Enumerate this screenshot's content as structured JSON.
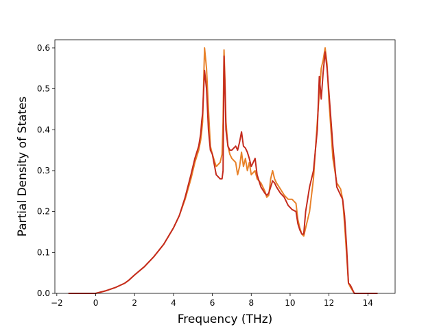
{
  "chart_data": {
    "type": "line",
    "title": "",
    "xlabel": "Frequency (THz)",
    "ylabel": "Partial Density of States",
    "xlim": [
      -2.1,
      15.4
    ],
    "ylim": [
      0.0,
      0.62
    ],
    "x_ticks": [
      -2,
      0,
      2,
      4,
      6,
      8,
      10,
      12,
      14
    ],
    "x_tick_labels": [
      "−2",
      "0",
      "2",
      "4",
      "6",
      "8",
      "10",
      "12",
      "14"
    ],
    "y_ticks": [
      0.0,
      0.1,
      0.2,
      0.3,
      0.4,
      0.5,
      0.6
    ],
    "y_tick_labels": [
      "0.0",
      "0.1",
      "0.2",
      "0.3",
      "0.4",
      "0.5",
      "0.6"
    ],
    "grid": false,
    "legend": "none",
    "series": [
      {
        "color": "#e8822a",
        "x": [
          -1.4,
          -1.0,
          -0.5,
          0.0,
          0.5,
          1.0,
          1.5,
          1.7,
          2.0,
          2.5,
          3.0,
          3.5,
          4.0,
          4.3,
          4.6,
          4.9,
          5.1,
          5.3,
          5.4,
          5.45,
          5.5,
          5.6,
          5.7,
          5.8,
          5.9,
          6.0,
          6.2,
          6.4,
          6.5,
          6.55,
          6.6,
          6.65,
          6.7,
          6.8,
          6.9,
          7.0,
          7.2,
          7.3,
          7.4,
          7.5,
          7.6,
          7.7,
          7.8,
          7.9,
          8.0,
          8.2,
          8.3,
          8.5,
          8.7,
          8.8,
          8.9,
          9.0,
          9.1,
          9.2,
          9.3,
          9.5,
          9.7,
          9.9,
          10.1,
          10.3,
          10.4,
          10.5,
          10.6,
          10.7,
          10.8,
          11.0,
          11.2,
          11.4,
          11.5,
          11.6,
          11.7,
          11.8,
          11.9,
          12.0,
          12.2,
          12.4,
          12.6,
          12.7,
          12.8,
          12.9,
          13.0,
          13.1,
          13.3,
          13.5,
          14.0,
          14.5
        ],
        "y": [
          0.0,
          0.0,
          0.0,
          0.0,
          0.006,
          0.014,
          0.025,
          0.032,
          0.045,
          0.065,
          0.09,
          0.12,
          0.16,
          0.19,
          0.23,
          0.28,
          0.32,
          0.35,
          0.375,
          0.395,
          0.42,
          0.6,
          0.55,
          0.45,
          0.36,
          0.34,
          0.31,
          0.32,
          0.34,
          0.42,
          0.595,
          0.52,
          0.42,
          0.36,
          0.34,
          0.33,
          0.32,
          0.29,
          0.31,
          0.345,
          0.31,
          0.33,
          0.3,
          0.32,
          0.29,
          0.3,
          0.28,
          0.27,
          0.25,
          0.235,
          0.24,
          0.28,
          0.3,
          0.28,
          0.27,
          0.255,
          0.24,
          0.23,
          0.23,
          0.22,
          0.18,
          0.16,
          0.145,
          0.14,
          0.16,
          0.2,
          0.28,
          0.42,
          0.49,
          0.55,
          0.57,
          0.6,
          0.56,
          0.47,
          0.33,
          0.27,
          0.255,
          0.23,
          0.17,
          0.1,
          0.025,
          0.015,
          0.0,
          0.0,
          0.0,
          0.0
        ]
      },
      {
        "color": "#c42b1e",
        "x": [
          -1.4,
          -1.0,
          -0.5,
          0.0,
          0.5,
          1.0,
          1.5,
          1.7,
          2.0,
          2.5,
          3.0,
          3.5,
          4.0,
          4.3,
          4.6,
          4.9,
          5.1,
          5.3,
          5.4,
          5.45,
          5.5,
          5.6,
          5.7,
          5.8,
          5.9,
          6.0,
          6.2,
          6.4,
          6.5,
          6.55,
          6.6,
          6.65,
          6.7,
          6.8,
          6.9,
          7.0,
          7.2,
          7.3,
          7.4,
          7.5,
          7.6,
          7.7,
          7.8,
          7.9,
          8.0,
          8.2,
          8.3,
          8.5,
          8.7,
          8.8,
          8.9,
          9.0,
          9.1,
          9.2,
          9.3,
          9.5,
          9.7,
          9.9,
          10.1,
          10.3,
          10.4,
          10.5,
          10.6,
          10.7,
          10.8,
          11.0,
          11.2,
          11.4,
          11.5,
          11.6,
          11.7,
          11.8,
          11.9,
          12.0,
          12.2,
          12.4,
          12.6,
          12.7,
          12.8,
          12.9,
          13.0,
          13.1,
          13.3,
          13.5,
          14.0,
          14.5
        ],
        "y": [
          0.0,
          0.0,
          0.0,
          0.0,
          0.006,
          0.014,
          0.025,
          0.032,
          0.045,
          0.065,
          0.09,
          0.12,
          0.16,
          0.19,
          0.235,
          0.29,
          0.33,
          0.36,
          0.39,
          0.42,
          0.44,
          0.545,
          0.5,
          0.4,
          0.35,
          0.34,
          0.29,
          0.28,
          0.28,
          0.3,
          0.58,
          0.5,
          0.4,
          0.36,
          0.35,
          0.35,
          0.36,
          0.35,
          0.37,
          0.395,
          0.36,
          0.355,
          0.345,
          0.33,
          0.31,
          0.33,
          0.29,
          0.26,
          0.245,
          0.24,
          0.245,
          0.26,
          0.275,
          0.27,
          0.26,
          0.245,
          0.235,
          0.215,
          0.205,
          0.2,
          0.17,
          0.155,
          0.145,
          0.145,
          0.2,
          0.26,
          0.3,
          0.4,
          0.53,
          0.475,
          0.54,
          0.59,
          0.55,
          0.49,
          0.36,
          0.26,
          0.24,
          0.23,
          0.19,
          0.12,
          0.025,
          0.02,
          0.0,
          0.0,
          0.0,
          0.0
        ]
      }
    ]
  }
}
